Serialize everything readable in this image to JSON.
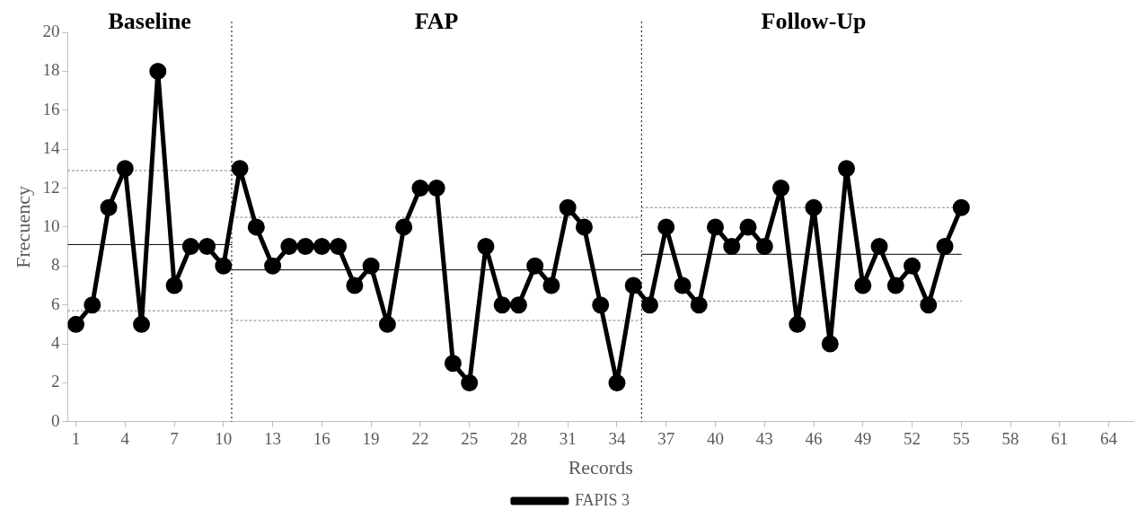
{
  "chart_data": {
    "type": "line",
    "xlabel": "Records",
    "ylabel": "Frecuency",
    "x": [
      1,
      2,
      3,
      4,
      5,
      6,
      7,
      8,
      9,
      10,
      11,
      12,
      13,
      14,
      15,
      16,
      17,
      18,
      19,
      20,
      21,
      22,
      23,
      24,
      25,
      26,
      27,
      28,
      29,
      30,
      31,
      32,
      33,
      34,
      35,
      36,
      37,
      38,
      39,
      40,
      41,
      42,
      43,
      44,
      45,
      46,
      47,
      48,
      49,
      50,
      51,
      52,
      53,
      54,
      55
    ],
    "xlim": [
      0.5,
      65.5
    ],
    "xticks": [
      1,
      4,
      7,
      10,
      13,
      16,
      19,
      22,
      25,
      28,
      31,
      34,
      37,
      40,
      43,
      46,
      49,
      52,
      55,
      58,
      61,
      64
    ],
    "ylim": [
      0,
      20
    ],
    "yticks": [
      0,
      2,
      4,
      6,
      8,
      10,
      12,
      14,
      16,
      18,
      20
    ],
    "grid": false,
    "legend": "bottom",
    "marker": "circle",
    "line_style": "solid",
    "series": [
      {
        "name": "FAPIS 3",
        "color": "#000000",
        "values": [
          5,
          6,
          11,
          13,
          5,
          18,
          7,
          9,
          9,
          8,
          13,
          10,
          8,
          9,
          9,
          9,
          9,
          7,
          8,
          5,
          10,
          12,
          12,
          3,
          2,
          9,
          6,
          6,
          8,
          7,
          11,
          10,
          6,
          2,
          7,
          6,
          10,
          7,
          6,
          10,
          9,
          10,
          9,
          12,
          5,
          11,
          4,
          13,
          7,
          9,
          7,
          8,
          6,
          9,
          11
        ]
      },
      {
        "type": "line",
        "marker": "none",
        "color": "#000000",
        "x": [
          0.5,
          10.5
        ],
        "values": [
          9.1,
          9.1
        ]
      },
      {
        "type": "line",
        "marker": "none",
        "line_style": "dotted",
        "color": "#808080",
        "x": [
          0.5,
          10.5
        ],
        "values": [
          12.9,
          12.9
        ]
      },
      {
        "type": "line",
        "marker": "none",
        "line_style": "dotted",
        "color": "#808080",
        "x": [
          0.5,
          10.5
        ],
        "values": [
          5.7,
          5.7
        ]
      },
      {
        "type": "line",
        "marker": "none",
        "color": "#000000",
        "x": [
          10.5,
          35.5
        ],
        "values": [
          7.8,
          7.8
        ]
      },
      {
        "type": "line",
        "marker": "none",
        "line_style": "dotted",
        "color": "#808080",
        "x": [
          10.5,
          35.5
        ],
        "values": [
          10.5,
          10.5
        ]
      },
      {
        "type": "line",
        "marker": "none",
        "line_style": "dotted",
        "color": "#808080",
        "x": [
          10.5,
          35.5
        ],
        "values": [
          5.2,
          5.2
        ]
      },
      {
        "type": "line",
        "marker": "none",
        "color": "#000000",
        "x": [
          35.5,
          55
        ],
        "values": [
          8.6,
          8.6
        ]
      },
      {
        "type": "line",
        "marker": "none",
        "line_style": "dotted",
        "color": "#808080",
        "x": [
          35.5,
          55
        ],
        "values": [
          11.0,
          11.0
        ]
      },
      {
        "type": "line",
        "marker": "none",
        "line_style": "dotted",
        "color": "#808080",
        "x": [
          35.5,
          55
        ],
        "values": [
          6.2,
          6.2
        ]
      }
    ],
    "ref_lines": [
      {
        "axis": "x",
        "value": 10.5,
        "line_style": "dotted",
        "color": "#000000"
      },
      {
        "axis": "x",
        "value": 35.5,
        "line_style": "dotted",
        "color": "#000000"
      }
    ],
    "annotations": [
      "Baseline",
      "FAP",
      "Follow-Up"
    ]
  }
}
